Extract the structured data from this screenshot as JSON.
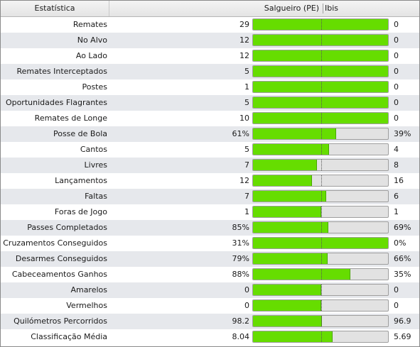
{
  "header": {
    "stat_label": "Estatística",
    "home_team": "Salgueiro (PE)",
    "away_team": "Ibis"
  },
  "colors": {
    "fill": "#66dd00",
    "bar_background": "#e2e2e2",
    "row_alternate": "#e6e8ec"
  },
  "rows": [
    {
      "label": "Remates",
      "home": "29",
      "away": "0",
      "home_share": 1.0
    },
    {
      "label": "No Alvo",
      "home": "12",
      "away": "0",
      "home_share": 1.0
    },
    {
      "label": "Ao Lado",
      "home": "12",
      "away": "0",
      "home_share": 1.0
    },
    {
      "label": "Remates Interceptados",
      "home": "5",
      "away": "0",
      "home_share": 1.0
    },
    {
      "label": "Postes",
      "home": "1",
      "away": "0",
      "home_share": 1.0
    },
    {
      "label": "Oportunidades Flagrantes",
      "home": "5",
      "away": "0",
      "home_share": 1.0
    },
    {
      "label": "Remates de Longe",
      "home": "10",
      "away": "0",
      "home_share": 1.0
    },
    {
      "label": "Posse de Bola",
      "home": "61%",
      "away": "39%",
      "home_share": 0.61
    },
    {
      "label": "Cantos",
      "home": "5",
      "away": "4",
      "home_share": 0.556
    },
    {
      "label": "Livres",
      "home": "7",
      "away": "8",
      "home_share": 0.467
    },
    {
      "label": "Lançamentos",
      "home": "12",
      "away": "16",
      "home_share": 0.429
    },
    {
      "label": "Faltas",
      "home": "7",
      "away": "6",
      "home_share": 0.538
    },
    {
      "label": "Foras de Jogo",
      "home": "1",
      "away": "1",
      "home_share": 0.5
    },
    {
      "label": "Passes Completados",
      "home": "85%",
      "away": "69%",
      "home_share": 0.552
    },
    {
      "label": "Cruzamentos Conseguidos",
      "home": "31%",
      "away": "0%",
      "home_share": 1.0
    },
    {
      "label": "Desarmes Conseguidos",
      "home": "79%",
      "away": "66%",
      "home_share": 0.545
    },
    {
      "label": "Cabeceamentos Ganhos",
      "home": "88%",
      "away": "35%",
      "home_share": 0.715
    },
    {
      "label": "Amarelos",
      "home": "0",
      "away": "0",
      "home_share": 0.5
    },
    {
      "label": "Vermelhos",
      "home": "0",
      "away": "0",
      "home_share": 0.5
    },
    {
      "label": "Quilómetros Percorridos",
      "home": "98.2",
      "away": "96.9",
      "home_share": 0.503
    },
    {
      "label": "Classificação Média",
      "home": "8.04",
      "away": "5.69",
      "home_share": 0.586
    }
  ]
}
